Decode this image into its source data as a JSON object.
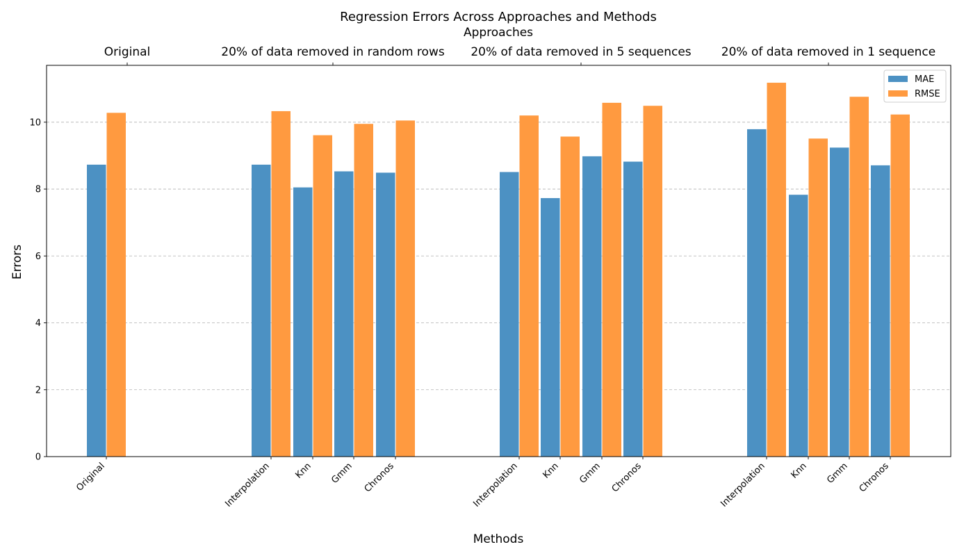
{
  "chart_data": {
    "type": "bar",
    "title": "Regression Errors Across Approaches and Methods",
    "top_axis_title": "Approaches",
    "xlabel": "Methods",
    "ylabel": "Errors",
    "ylim": [
      0,
      11.7
    ],
    "yticks": [
      0,
      2,
      4,
      6,
      8,
      10
    ],
    "grid": "y-dashed",
    "legend_position": "top-right",
    "approaches": [
      "Original",
      "20% of data removed in random rows",
      "20% of data removed in 5 sequences",
      "20% of data removed in 1 sequence"
    ],
    "groups": [
      {
        "approach": "Original",
        "method": "Original",
        "MAE": 8.73,
        "RMSE": 10.28
      },
      {
        "approach": "20% of data removed in random rows",
        "method": "Interpolation",
        "MAE": 8.73,
        "RMSE": 10.33
      },
      {
        "approach": "20% of data removed in random rows",
        "method": "Knn",
        "MAE": 8.05,
        "RMSE": 9.61
      },
      {
        "approach": "20% of data removed in random rows",
        "method": "Gmm",
        "MAE": 8.53,
        "RMSE": 9.95
      },
      {
        "approach": "20% of data removed in random rows",
        "method": "Chronos",
        "MAE": 8.49,
        "RMSE": 10.05
      },
      {
        "approach": "20% of data removed in 5 sequences",
        "method": "Interpolation",
        "MAE": 8.51,
        "RMSE": 10.2
      },
      {
        "approach": "20% of data removed in 5 sequences",
        "method": "Knn",
        "MAE": 7.73,
        "RMSE": 9.57
      },
      {
        "approach": "20% of data removed in 5 sequences",
        "method": "Gmm",
        "MAE": 8.98,
        "RMSE": 10.58
      },
      {
        "approach": "20% of data removed in 5 sequences",
        "method": "Chronos",
        "MAE": 8.82,
        "RMSE": 10.49
      },
      {
        "approach": "20% of data removed in 1 sequence",
        "method": "Interpolation",
        "MAE": 9.79,
        "RMSE": 11.18
      },
      {
        "approach": "20% of data removed in 1 sequence",
        "method": "Knn",
        "MAE": 7.83,
        "RMSE": 9.51
      },
      {
        "approach": "20% of data removed in 1 sequence",
        "method": "Gmm",
        "MAE": 9.24,
        "RMSE": 10.76
      },
      {
        "approach": "20% of data removed in 1 sequence",
        "method": "Chronos",
        "MAE": 8.71,
        "RMSE": 10.23
      }
    ],
    "series": [
      {
        "name": "MAE",
        "color": "#4c91c3"
      },
      {
        "name": "RMSE",
        "color": "#ff9a40"
      }
    ]
  }
}
